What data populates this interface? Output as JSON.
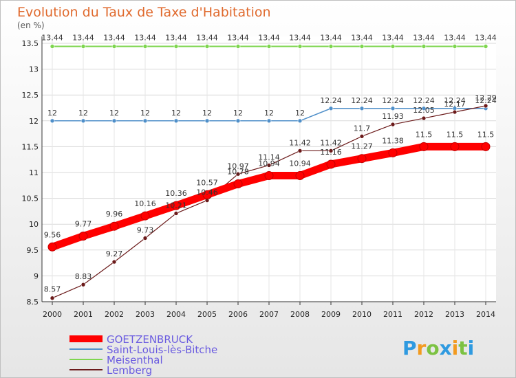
{
  "chart_data": {
    "type": "line",
    "title": "Evolution du Taux de Taxe d'Habitation",
    "subtitle": "(en %)",
    "x": [
      2000,
      2001,
      2002,
      2003,
      2004,
      2005,
      2006,
      2007,
      2008,
      2009,
      2010,
      2011,
      2012,
      2013,
      2014
    ],
    "ylim": [
      8.5,
      13.5
    ],
    "yticks": [
      "8.5",
      "9",
      "9.5",
      "10",
      "10.5",
      "11",
      "11.5",
      "12",
      "12.5",
      "13",
      "13.5"
    ],
    "grid": true,
    "legend_position": "bottom-left",
    "series": [
      {
        "name": "GOETZENBRUCK",
        "color": "#ff0000",
        "values": [
          9.56,
          9.77,
          9.96,
          10.16,
          10.36,
          10.57,
          10.78,
          10.94,
          10.94,
          11.16,
          11.27,
          11.38,
          11.5,
          11.5,
          11.5
        ],
        "labels": [
          "9.56",
          "9.77",
          "9.96",
          "10.16",
          "10.36",
          "10.57",
          "10.78",
          "10.94",
          "10.94",
          "11.16",
          "11.27",
          "11.38",
          "11.5",
          "11.5",
          "11.5"
        ]
      },
      {
        "name": "Saint-Louis-lès-Bitche",
        "color": "#4f8fc9",
        "values": [
          12,
          12,
          12,
          12,
          12,
          12,
          12,
          12,
          12,
          12.24,
          12.24,
          12.24,
          12.24,
          12.24,
          12.24
        ],
        "labels": [
          "12",
          "12",
          "12",
          "12",
          "12",
          "12",
          "12",
          "12",
          "12",
          "12.24",
          "12.24",
          "12.24",
          "12.24",
          "12.24",
          "12.24"
        ]
      },
      {
        "name": "Meisenthal",
        "color": "#7ed64f",
        "values": [
          13.44,
          13.44,
          13.44,
          13.44,
          13.44,
          13.44,
          13.44,
          13.44,
          13.44,
          13.44,
          13.44,
          13.44,
          13.44,
          13.44,
          13.44
        ],
        "labels": [
          "13.44",
          "13.44",
          "13.44",
          "13.44",
          "13.44",
          "13.44",
          "13.44",
          "13.44",
          "13.44",
          "13.44",
          "13.44",
          "13.44",
          "13.44",
          "13.44",
          "13.44"
        ]
      },
      {
        "name": "Lemberg",
        "color": "#6b1a1a",
        "values": [
          8.57,
          8.83,
          9.27,
          9.73,
          10.21,
          10.46,
          10.97,
          11.14,
          11.42,
          11.42,
          11.7,
          11.93,
          12.05,
          12.17,
          12.29
        ],
        "labels": [
          "8.57",
          "8.83",
          "9.27",
          "9.73",
          "10.21",
          "10.46",
          "10.97",
          "11.14",
          "11.42",
          "11.42",
          "11.7",
          "11.93",
          "12.05",
          "12.17",
          "12.29"
        ]
      }
    ]
  },
  "brand": {
    "letters": [
      "P",
      "r",
      "o",
      "x",
      "i",
      "t",
      "i"
    ],
    "colors": [
      "#2f9ae0",
      "#f29a1f",
      "#7cc242",
      "#2f9ae0",
      "#f29a1f",
      "#7cc242",
      "#2f9ae0"
    ]
  }
}
